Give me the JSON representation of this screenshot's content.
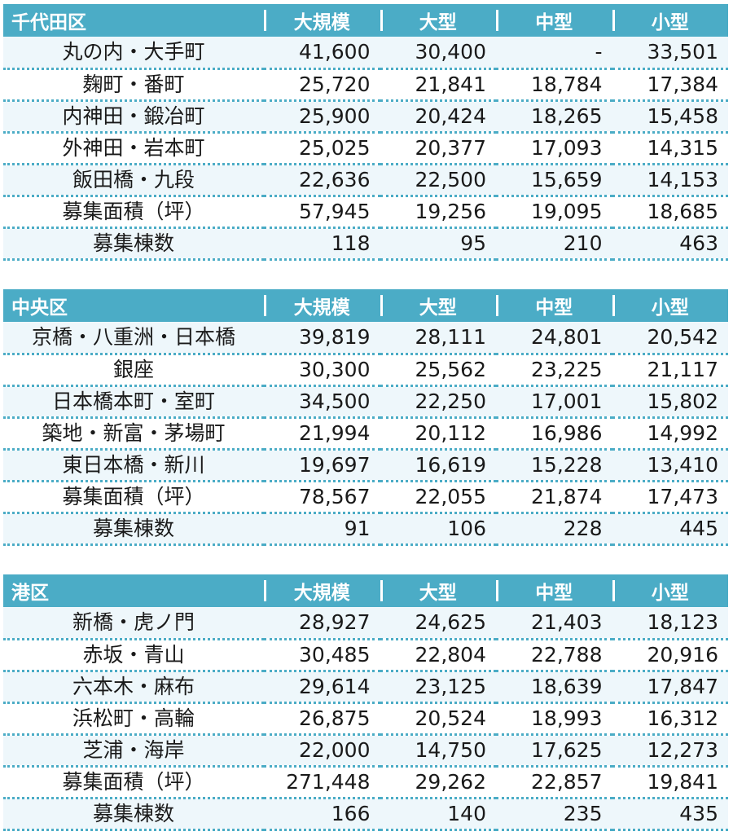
{
  "tables": [
    {
      "district": "千代田区",
      "columns": [
        "大規模",
        "大型",
        "中型",
        "小型"
      ],
      "rows": [
        {
          "area": "丸の内・大手町",
          "values": [
            "41,600",
            "30,400",
            "-",
            "33,501"
          ]
        },
        {
          "area": "麹町・番町",
          "values": [
            "25,720",
            "21,841",
            "18,784",
            "17,384"
          ]
        },
        {
          "area": "内神田・鍛冶町",
          "values": [
            "25,900",
            "20,424",
            "18,265",
            "15,458"
          ]
        },
        {
          "area": "外神田・岩本町",
          "values": [
            "25,025",
            "20,377",
            "17,093",
            "14,315"
          ]
        },
        {
          "area": "飯田橋・九段",
          "values": [
            "22,636",
            "22,500",
            "15,659",
            "14,153"
          ]
        },
        {
          "area": "募集面積（坪）",
          "values": [
            "57,945",
            "19,256",
            "19,095",
            "18,685"
          ]
        },
        {
          "area": "募集棟数",
          "values": [
            "118",
            "95",
            "210",
            "463"
          ]
        }
      ]
    },
    {
      "district": "中央区",
      "columns": [
        "大規模",
        "大型",
        "中型",
        "小型"
      ],
      "rows": [
        {
          "area": "京橋・八重洲・日本橋",
          "values": [
            "39,819",
            "28,111",
            "24,801",
            "20,542"
          ]
        },
        {
          "area": "銀座",
          "values": [
            "30,300",
            "25,562",
            "23,225",
            "21,117"
          ]
        },
        {
          "area": "日本橋本町・室町",
          "values": [
            "34,500",
            "22,250",
            "17,001",
            "15,802"
          ]
        },
        {
          "area": "築地・新富・茅場町",
          "values": [
            "21,994",
            "20,112",
            "16,986",
            "14,992"
          ]
        },
        {
          "area": "東日本橋・新川",
          "values": [
            "19,697",
            "16,619",
            "15,228",
            "13,410"
          ]
        },
        {
          "area": "募集面積（坪）",
          "values": [
            "78,567",
            "22,055",
            "21,874",
            "17,473"
          ]
        },
        {
          "area": "募集棟数",
          "values": [
            "91",
            "106",
            "228",
            "445"
          ]
        }
      ]
    },
    {
      "district": "港区",
      "columns": [
        "大規模",
        "大型",
        "中型",
        "小型"
      ],
      "rows": [
        {
          "area": "新橋・虎ノ門",
          "values": [
            "28,927",
            "24,625",
            "21,403",
            "18,123"
          ]
        },
        {
          "area": "赤坂・青山",
          "values": [
            "30,485",
            "22,804",
            "22,788",
            "20,916"
          ]
        },
        {
          "area": "六本木・麻布",
          "values": [
            "29,614",
            "23,125",
            "18,639",
            "17,847"
          ]
        },
        {
          "area": "浜松町・高輪",
          "values": [
            "26,875",
            "20,524",
            "18,993",
            "16,312"
          ]
        },
        {
          "area": "芝浦・海岸",
          "values": [
            "22,000",
            "14,750",
            "17,625",
            "12,273"
          ]
        },
        {
          "area": "募集面積（坪）",
          "values": [
            "271,448",
            "29,262",
            "22,857",
            "19,841"
          ]
        },
        {
          "area": "募集棟数",
          "values": [
            "166",
            "140",
            "235",
            "435"
          ]
        }
      ]
    }
  ]
}
